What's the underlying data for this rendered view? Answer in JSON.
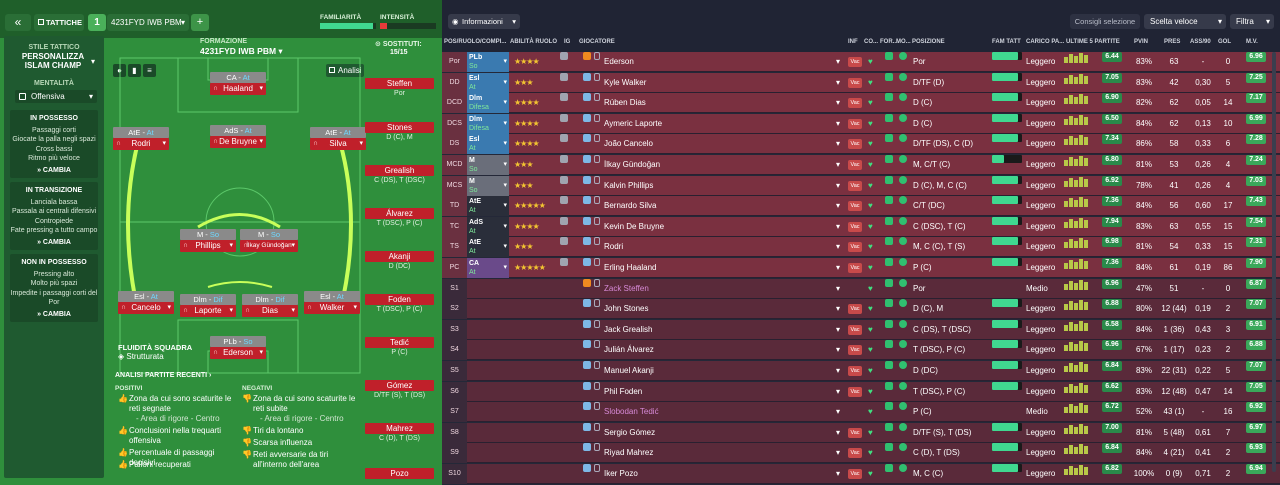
{
  "tactics": {
    "back": "«",
    "section": "TATTICHE",
    "slot": "1",
    "formation_name": "4231FYD IWB PBM",
    "add": "+",
    "familiarity_label": "FAMILIARITÀ",
    "intensity_label": "INTENSITÀ"
  },
  "style": {
    "header": "STILE TATTICO",
    "name": "PERSONALIZZA ISLAM CHAMP",
    "mentality_label": "MENTALITÀ",
    "mentality": "Offensiva",
    "phases": [
      {
        "title": "IN POSSESSO",
        "items": [
          "Passaggi corti",
          "Giocate la palla negli spazi",
          "Cross bassi",
          "Ritmo più veloce"
        ],
        "action": "CAMBIA"
      },
      {
        "title": "IN TRANSIZIONE",
        "items": [
          "Lanciala bassa",
          "Passala ai centrali difensivi",
          "Contropiede",
          "Fate pressing a tutto campo"
        ],
        "action": "CAMBIA"
      },
      {
        "title": "NON IN POSSESSO",
        "items": [
          "Pressing alto",
          "Molto più spazi",
          "Impedite i passaggi corti del Por"
        ],
        "action": "CAMBIA"
      }
    ]
  },
  "formation": {
    "label": "FORMAZIONE",
    "name": "4231FYD IWB PBM",
    "subs_label": "SOSTITUTI:",
    "subs_count": "15/15",
    "analysis_btn": "Analisi",
    "fluidity_label": "FLUIDITÀ SQUADRA",
    "fluidity": "Strutturata"
  },
  "pitch": [
    {
      "role": "CA",
      "duty": "At",
      "name": "Haaland"
    },
    {
      "role": "AtE",
      "duty": "At",
      "name": "Rodri"
    },
    {
      "role": "AdS",
      "duty": "At",
      "name": "De Bruyne"
    },
    {
      "role": "AtE",
      "duty": "At",
      "name": "Silva"
    },
    {
      "role": "M",
      "duty": "So",
      "name": "Phillips"
    },
    {
      "role": "M",
      "duty": "So",
      "name": "İlkay Gündoğan"
    },
    {
      "role": "Esl",
      "duty": "At",
      "name": "Cancelo"
    },
    {
      "role": "Dlm",
      "duty": "Dif",
      "name": "Laporte"
    },
    {
      "role": "Dlm",
      "duty": "Dif",
      "name": "Dias"
    },
    {
      "role": "Esl",
      "duty": "At",
      "name": "Walker"
    },
    {
      "role": "PLb",
      "duty": "So",
      "name": "Ederson"
    }
  ],
  "subs": [
    {
      "name": "Steffen",
      "pos": "Por"
    },
    {
      "name": "Stones",
      "pos": "D (C), M"
    },
    {
      "name": "Grealish",
      "pos": "C (DS), T (DSC)"
    },
    {
      "name": "Álvarez",
      "pos": "T (DSC), P (C)"
    },
    {
      "name": "Akanji",
      "pos": "D (DC)"
    },
    {
      "name": "Foden",
      "pos": "T (DSC), P (C)"
    },
    {
      "name": "Tedić",
      "pos": "P (C)"
    },
    {
      "name": "Gómez",
      "pos": "D/TF (S), T (DS)"
    },
    {
      "name": "Mahrez",
      "pos": "C (D), T (DS)"
    },
    {
      "name": "Pozo",
      "pos": ""
    }
  ],
  "recent": {
    "title": "ANALISI PARTITE RECENTI ›",
    "positives_label": "POSITIVI",
    "negatives_label": "NEGATIVI",
    "positives": [
      {
        "t": "Zona da cui sono scaturite le reti segnate",
        "s": "- Area di rigore - Centro"
      },
      {
        "t": "Conclusioni nella trequarti offensiva",
        "s": ""
      },
      {
        "t": "Percentuale di passaggi decisivi",
        "s": ""
      },
      {
        "t": "Palloni recuperati",
        "s": ""
      }
    ],
    "negatives": [
      {
        "t": "Zona da cui sono scaturite le reti subite",
        "s": "- Area di rigore - Centro"
      },
      {
        "t": "Tiri da lontano",
        "s": ""
      },
      {
        "t": "Scarsa influenza",
        "s": ""
      },
      {
        "t": "Reti avversarie da tiri all'interno dell'area",
        "s": ""
      }
    ]
  },
  "right_top": {
    "view": "Informazioni",
    "advice": "Consigli selezione",
    "quick": "Scelta veloce",
    "filter": "Filtra"
  },
  "headers": [
    "POS/RUOLO/COMPI...",
    "ABILITÀ RUOLO",
    "IG",
    "GIOCATORE",
    "INF",
    "CO...",
    "FOR...",
    "MO...",
    "POSIZIONE",
    "FAM TATT",
    "CARICO PA...",
    "ULTIME 5 PARTITE",
    "PVIN",
    "PRES",
    "ASS/90",
    "GOL",
    "M.V."
  ],
  "rows": [
    {
      "pos": "Por",
      "role": "PLb",
      "duty": "So",
      "stars": "★★★★",
      "name": "Ederson",
      "position": "Por",
      "fam": 0.85,
      "load": "Leggero",
      "rating": "6.44",
      "pvin": "83%",
      "pres": "63",
      "ass": "-",
      "gol": "0",
      "mv": "6.96",
      "color": "#7a3040",
      "rc": "#3a7ab0"
    },
    {
      "pos": "DD",
      "role": "Esl",
      "duty": "At",
      "stars": "★★★",
      "name": "Kyle Walker",
      "position": "D/TF (D)",
      "fam": 0.85,
      "load": "Leggero",
      "rating": "7.05",
      "pvin": "83%",
      "pres": "42",
      "ass": "0,30",
      "gol": "5",
      "mv": "7.25",
      "color": "#7a3040",
      "rc": "#3a7ab0"
    },
    {
      "pos": "DCD",
      "role": "Dlm",
      "duty": "Difesa",
      "stars": "★★★★",
      "name": "Rúben Dias",
      "position": "D (C)",
      "fam": 0.85,
      "load": "Leggero",
      "rating": "6.90",
      "pvin": "82%",
      "pres": "62",
      "ass": "0,05",
      "gol": "14",
      "mv": "7.17",
      "color": "#7a3040",
      "rc": "#3a7ab0"
    },
    {
      "pos": "DCS",
      "role": "Dlm",
      "duty": "Difesa",
      "stars": "★★★★",
      "name": "Aymeric Laporte",
      "position": "D (C)",
      "fam": 0.85,
      "load": "Leggero",
      "rating": "6.50",
      "pvin": "84%",
      "pres": "62",
      "ass": "0,13",
      "gol": "10",
      "mv": "6.99",
      "color": "#7a3040",
      "rc": "#3a7ab0"
    },
    {
      "pos": "DS",
      "role": "Esl",
      "duty": "At",
      "stars": "★★★★",
      "name": "João Cancelo",
      "position": "D/TF (DS), C (D)",
      "fam": 0.85,
      "load": "Leggero",
      "rating": "7.34",
      "pvin": "86%",
      "pres": "58",
      "ass": "0,33",
      "gol": "6",
      "mv": "7.28",
      "color": "#7a3040",
      "rc": "#3a7ab0"
    },
    {
      "pos": "MCD",
      "role": "M",
      "duty": "So",
      "stars": "★★★",
      "name": "İlkay Gündoğan",
      "position": "M, C/T (C)",
      "fam": 0.4,
      "load": "Leggero",
      "rating": "6.80",
      "pvin": "81%",
      "pres": "53",
      "ass": "0,26",
      "gol": "4",
      "mv": "7.24",
      "color": "#7a3040",
      "rc": "#6a6e7a"
    },
    {
      "pos": "MCS",
      "role": "M",
      "duty": "So",
      "stars": "★★★",
      "name": "Kalvin Phillips",
      "position": "D (C), M, C (C)",
      "fam": 0.85,
      "load": "Leggero",
      "rating": "6.92",
      "pvin": "78%",
      "pres": "41",
      "ass": "0,26",
      "gol": "4",
      "mv": "7.03",
      "color": "#7a3040",
      "rc": "#6a6e7a"
    },
    {
      "pos": "TD",
      "role": "AtE",
      "duty": "At",
      "stars": "★★★★★",
      "name": "Bernardo Silva",
      "position": "C/T (DC)",
      "fam": 0.85,
      "load": "Leggero",
      "rating": "7.36",
      "pvin": "84%",
      "pres": "56",
      "ass": "0,60",
      "gol": "17",
      "mv": "7.43",
      "color": "#7a3040",
      "rc": "#2a2e3a"
    },
    {
      "pos": "TC",
      "role": "AdS",
      "duty": "At",
      "stars": "★★★★",
      "name": "Kevin De Bruyne",
      "position": "C (DSC), T (C)",
      "fam": 0.85,
      "load": "Leggero",
      "rating": "7.94",
      "pvin": "83%",
      "pres": "63",
      "ass": "0,55",
      "gol": "15",
      "mv": "7.54",
      "color": "#7a3040",
      "rc": "#2a2e3a"
    },
    {
      "pos": "TS",
      "role": "AtE",
      "duty": "At",
      "stars": "★★★",
      "name": "Rodri",
      "position": "M, C (C), T (S)",
      "fam": 0.85,
      "load": "Leggero",
      "rating": "6.98",
      "pvin": "81%",
      "pres": "54",
      "ass": "0,33",
      "gol": "15",
      "mv": "7.31",
      "color": "#7a3040",
      "rc": "#2a2e3a"
    },
    {
      "pos": "PC",
      "role": "CA",
      "duty": "At",
      "stars": "★★★★★",
      "name": "Erling Haaland",
      "position": "P (C)",
      "fam": 0.85,
      "load": "Leggero",
      "rating": "7.36",
      "pvin": "84%",
      "pres": "61",
      "ass": "0,19",
      "gol": "86",
      "mv": "7.90",
      "color": "#7a3040",
      "rc": "#6a4a8a"
    },
    {
      "pos": "S1",
      "role": "",
      "duty": "",
      "stars": "",
      "name": "Zack Steffen",
      "position": "Por",
      "fam": 0,
      "load": "Medio",
      "rating": "6.96",
      "pvin": "47%",
      "pres": "51",
      "ass": "-",
      "gol": "0",
      "mv": "6.87",
      "color": "#5a2a3a",
      "rc": ""
    },
    {
      "pos": "S2",
      "role": "",
      "duty": "",
      "stars": "",
      "name": "John Stones",
      "position": "D (C), M",
      "fam": 0.85,
      "load": "Leggero",
      "rating": "6.88",
      "pvin": "80%",
      "pres": "12 (44)",
      "ass": "0,19",
      "gol": "2",
      "mv": "7.07",
      "color": "#5a2a3a",
      "rc": ""
    },
    {
      "pos": "S3",
      "role": "",
      "duty": "",
      "stars": "",
      "name": "Jack Grealish",
      "position": "C (DS), T (DSC)",
      "fam": 0.85,
      "load": "Leggero",
      "rating": "6.58",
      "pvin": "84%",
      "pres": "1 (36)",
      "ass": "0,43",
      "gol": "3",
      "mv": "6.91",
      "color": "#5a2a3a",
      "rc": ""
    },
    {
      "pos": "S4",
      "role": "",
      "duty": "",
      "stars": "",
      "name": "Julián Álvarez",
      "position": "T (DSC), P (C)",
      "fam": 0.85,
      "load": "Leggero",
      "rating": "6.96",
      "pvin": "67%",
      "pres": "1 (17)",
      "ass": "0,23",
      "gol": "2",
      "mv": "6.88",
      "color": "#5a2a3a",
      "rc": ""
    },
    {
      "pos": "S5",
      "role": "",
      "duty": "",
      "stars": "",
      "name": "Manuel Akanji",
      "position": "D (DC)",
      "fam": 0.85,
      "load": "Leggero",
      "rating": "6.84",
      "pvin": "83%",
      "pres": "22 (31)",
      "ass": "0,22",
      "gol": "5",
      "mv": "7.07",
      "color": "#5a2a3a",
      "rc": ""
    },
    {
      "pos": "S6",
      "role": "",
      "duty": "",
      "stars": "",
      "name": "Phil Foden",
      "position": "T (DSC), P (C)",
      "fam": 0.85,
      "load": "Leggero",
      "rating": "6.62",
      "pvin": "83%",
      "pres": "12 (48)",
      "ass": "0,47",
      "gol": "14",
      "mv": "7.05",
      "color": "#5a2a3a",
      "rc": ""
    },
    {
      "pos": "S7",
      "role": "",
      "duty": "",
      "stars": "",
      "name": "Slobodan Tedić",
      "position": "P (C)",
      "fam": 0,
      "load": "Medio",
      "rating": "6.72",
      "pvin": "52%",
      "pres": "43 (1)",
      "ass": "-",
      "gol": "16",
      "mv": "6.92",
      "color": "#5a2a3a",
      "rc": ""
    },
    {
      "pos": "S8",
      "role": "",
      "duty": "",
      "stars": "",
      "name": "Sergio Gómez",
      "position": "D/TF (S), T (DS)",
      "fam": 0.85,
      "load": "Leggero",
      "rating": "7.00",
      "pvin": "81%",
      "pres": "5 (48)",
      "ass": "0,61",
      "gol": "7",
      "mv": "6.97",
      "color": "#5a2a3a",
      "rc": ""
    },
    {
      "pos": "S9",
      "role": "",
      "duty": "",
      "stars": "",
      "name": "Riyad Mahrez",
      "position": "C (D), T (DS)",
      "fam": 0.85,
      "load": "Leggero",
      "rating": "6.84",
      "pvin": "84%",
      "pres": "4 (21)",
      "ass": "0,41",
      "gol": "2",
      "mv": "6.93",
      "color": "#5a2a3a",
      "rc": ""
    },
    {
      "pos": "S10",
      "role": "",
      "duty": "",
      "stars": "",
      "name": "Iker Pozo",
      "position": "M, C (C)",
      "fam": 0.85,
      "load": "Leggero",
      "rating": "6.82",
      "pvin": "100%",
      "pres": "0 (9)",
      "ass": "0,71",
      "gol": "2",
      "mv": "6.94",
      "color": "#5a2a3a",
      "rc": ""
    }
  ]
}
